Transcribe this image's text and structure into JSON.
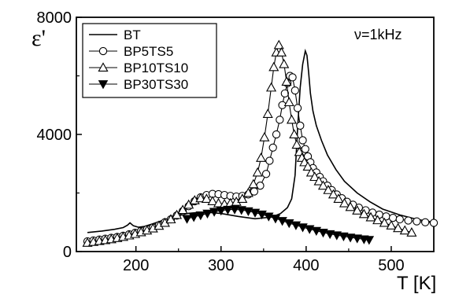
{
  "chart_data": {
    "type": "line",
    "title": "",
    "xlabel": "T   [K]",
    "ylabel": "ε'",
    "xlim": [
      130,
      550
    ],
    "ylim": [
      0,
      8000
    ],
    "xticks": [
      200,
      300,
      400,
      500
    ],
    "yticks": [
      0,
      4000,
      8000
    ],
    "grid": false,
    "legend_position": "top-left",
    "annotation": "ν=1kHz",
    "series": [
      {
        "name": "BT",
        "marker": "none",
        "color": "#000000",
        "x": [
          143,
          160,
          175,
          185,
          190,
          193,
          197,
          203,
          210,
          220,
          240,
          260,
          280,
          300,
          320,
          340,
          360,
          370,
          378,
          383,
          387,
          390,
          393,
          396,
          399,
          401,
          403,
          405,
          408,
          412,
          418,
          425,
          435,
          445,
          460,
          475,
          490,
          510,
          530,
          550
        ],
        "y": [
          650,
          700,
          760,
          820,
          900,
          980,
          880,
          830,
          860,
          950,
          1150,
          1300,
          1350,
          1300,
          1200,
          1120,
          1180,
          1300,
          1500,
          1800,
          2600,
          4200,
          5600,
          6400,
          6850,
          6700,
          6100,
          5400,
          4800,
          4300,
          3800,
          3300,
          2800,
          2400,
          2000,
          1700,
          1450,
          1250,
          1100,
          1000
        ]
      },
      {
        "name": "BP5TS5",
        "marker": "circle",
        "color": "#000000",
        "x": [
          143,
          150,
          157,
          164,
          171,
          178,
          185,
          192,
          199,
          206,
          213,
          220,
          227,
          234,
          241,
          248,
          255,
          262,
          269,
          276,
          283,
          290,
          297,
          304,
          311,
          318,
          325,
          332,
          339,
          346,
          353,
          357,
          361,
          365,
          369,
          372,
          375,
          378,
          381,
          384,
          387,
          390,
          393,
          396,
          399,
          402,
          405,
          408,
          412,
          416,
          420,
          425,
          430,
          436,
          442,
          448,
          455,
          462,
          470,
          478,
          486,
          494,
          502,
          510,
          520,
          530,
          540,
          550
        ],
        "y": [
          350,
          380,
          410,
          440,
          470,
          500,
          540,
          590,
          640,
          700,
          760,
          820,
          900,
          1000,
          1100,
          1230,
          1380,
          1550,
          1720,
          1850,
          1930,
          1970,
          1960,
          1930,
          1900,
          1880,
          1900,
          1950,
          2050,
          2250,
          2650,
          3100,
          3550,
          4000,
          4500,
          5000,
          5400,
          5750,
          6000,
          5950,
          5500,
          4900,
          4300,
          3800,
          3500,
          3250,
          3050,
          2850,
          2700,
          2550,
          2400,
          2250,
          2100,
          1950,
          1820,
          1700,
          1600,
          1500,
          1410,
          1330,
          1260,
          1200,
          1150,
          1100,
          1060,
          1030,
          1000,
          980
        ]
      },
      {
        "name": "BP10TS10",
        "marker": "triangle",
        "color": "#000000",
        "x": [
          143,
          150,
          157,
          164,
          171,
          178,
          185,
          192,
          199,
          206,
          213,
          220,
          227,
          234,
          241,
          248,
          255,
          262,
          269,
          276,
          283,
          290,
          297,
          304,
          311,
          318,
          325,
          332,
          338,
          343,
          347,
          351,
          355,
          359,
          362,
          365,
          368,
          371,
          374,
          377,
          380,
          383,
          386,
          389,
          392,
          395,
          398,
          402,
          406,
          410,
          415,
          420,
          426,
          432,
          438,
          445,
          452,
          460,
          468,
          476,
          484,
          492,
          500,
          508,
          516,
          524
        ],
        "y": [
          300,
          330,
          360,
          390,
          420,
          460,
          500,
          550,
          600,
          660,
          720,
          790,
          880,
          980,
          1100,
          1250,
          1420,
          1600,
          1750,
          1820,
          1800,
          1720,
          1650,
          1620,
          1650,
          1700,
          1800,
          2000,
          2300,
          2700,
          3200,
          3900,
          4700,
          5600,
          6300,
          6800,
          7050,
          6800,
          6400,
          5800,
          5100,
          4500,
          4000,
          3650,
          3400,
          3200,
          3050,
          2900,
          2700,
          2550,
          2400,
          2250,
          2100,
          1950,
          1800,
          1650,
          1520,
          1400,
          1280,
          1170,
          1070,
          980,
          890,
          800,
          720,
          650
        ]
      },
      {
        "name": "BP30TS30",
        "marker": "triangle-down-filled",
        "color": "#000000",
        "x": [
          260,
          268,
          276,
          284,
          292,
          300,
          308,
          316,
          324,
          332,
          340,
          348,
          356,
          364,
          372,
          380,
          388,
          396,
          404,
          412,
          420,
          428,
          436,
          444,
          452,
          460,
          468,
          474
        ],
        "y": [
          1120,
          1180,
          1240,
          1300,
          1360,
          1400,
          1430,
          1440,
          1420,
          1380,
          1330,
          1270,
          1200,
          1130,
          1050,
          970,
          900,
          830,
          770,
          710,
          650,
          600,
          560,
          520,
          480,
          450,
          420,
          400
        ]
      }
    ]
  }
}
